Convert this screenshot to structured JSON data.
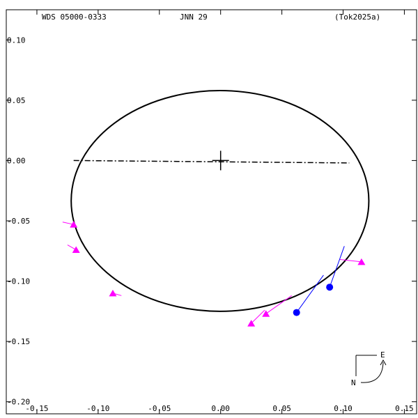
{
  "chart_data": {
    "type": "scatter",
    "header": {
      "left": "WDS 05000-0333",
      "center": "JNN  29",
      "right": "(Tok2025a)"
    },
    "x_ticks": [
      -0.15,
      -0.1,
      -0.05,
      0.0,
      0.05,
      0.1,
      0.15
    ],
    "x_tick_labels": [
      "-0.15",
      "-0.10",
      "-0.05",
      "0.00",
      "0.05",
      "0.10",
      "0.15"
    ],
    "y_ticks": [
      0.1,
      0.05,
      0.0,
      -0.05,
      -0.1,
      -0.15,
      -0.2
    ],
    "y_tick_labels": [
      "0.10",
      "0.05",
      "0.00",
      "-0.05",
      "-0.10",
      "-0.15",
      "-0.20"
    ],
    "xlim": [
      -0.175,
      0.16
    ],
    "ylim": [
      -0.21,
      0.125
    ],
    "orbit": {
      "cx": -0.0005,
      "cy": -0.0335,
      "rx": 0.1215,
      "ry": 0.0915
    },
    "node_line": [
      [
        -0.12,
        0.0
      ],
      [
        0.105,
        -0.002
      ]
    ],
    "primary": [
      0.0,
      0.0
    ],
    "series": [
      {
        "marker": "triangle",
        "color": "#ff00ff",
        "points": [
          {
            "x": -0.12,
            "y": -0.053,
            "ox": -0.129,
            "oy": -0.051
          },
          {
            "x": -0.118,
            "y": -0.074,
            "ox": -0.125,
            "oy": -0.07
          },
          {
            "x": -0.088,
            "y": -0.11,
            "ox": -0.081,
            "oy": -0.112
          },
          {
            "x": 0.025,
            "y": -0.135,
            "ox": 0.036,
            "oy": -0.124
          },
          {
            "x": 0.037,
            "y": -0.127,
            "ox": 0.058,
            "oy": -0.112
          },
          {
            "x": 0.115,
            "y": -0.084,
            "ox": 0.097,
            "oy": -0.082
          }
        ]
      },
      {
        "marker": "circle",
        "color": "#0000ff",
        "points": [
          {
            "x": 0.062,
            "y": -0.126,
            "ox": 0.084,
            "oy": -0.095
          },
          {
            "x": 0.089,
            "y": -0.105,
            "ox": 0.101,
            "oy": -0.071
          }
        ]
      }
    ],
    "compass": {
      "east": "E",
      "north": "N"
    },
    "colors": {
      "orbit": "#000000",
      "node_line": "#000000",
      "axes": "#000000"
    }
  }
}
